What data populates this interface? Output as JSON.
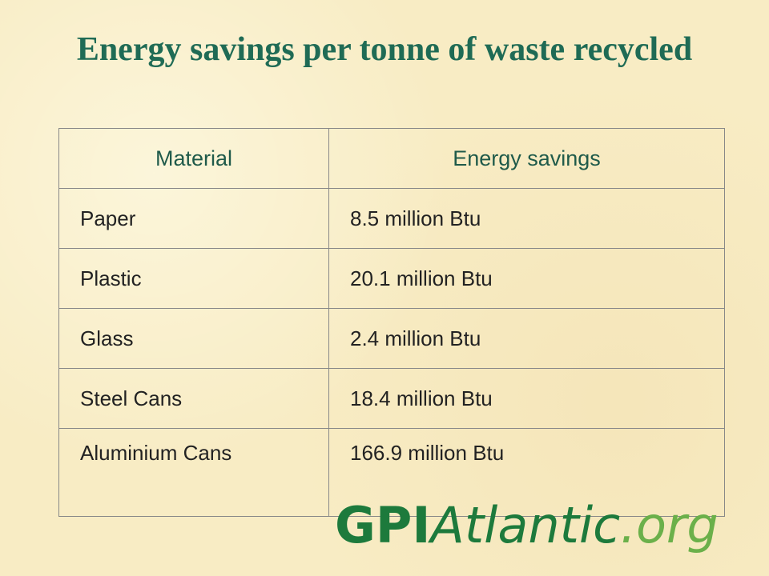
{
  "header": {
    "title": "Energy savings per tonne of waste recycled"
  },
  "table": {
    "columns": [
      "Material",
      "Energy savings"
    ],
    "rows": [
      [
        "Paper",
        "8.5 million Btu"
      ],
      [
        "Plastic",
        "20.1 million Btu"
      ],
      [
        "Glass",
        "2.4 million Btu"
      ],
      [
        "Steel Cans",
        "18.4 million Btu"
      ],
      [
        "Aluminium Cans",
        "166.9 million Btu"
      ]
    ]
  },
  "logo": {
    "part1": "GPI",
    "part2": "Atlantic",
    "part3": ".org"
  }
}
